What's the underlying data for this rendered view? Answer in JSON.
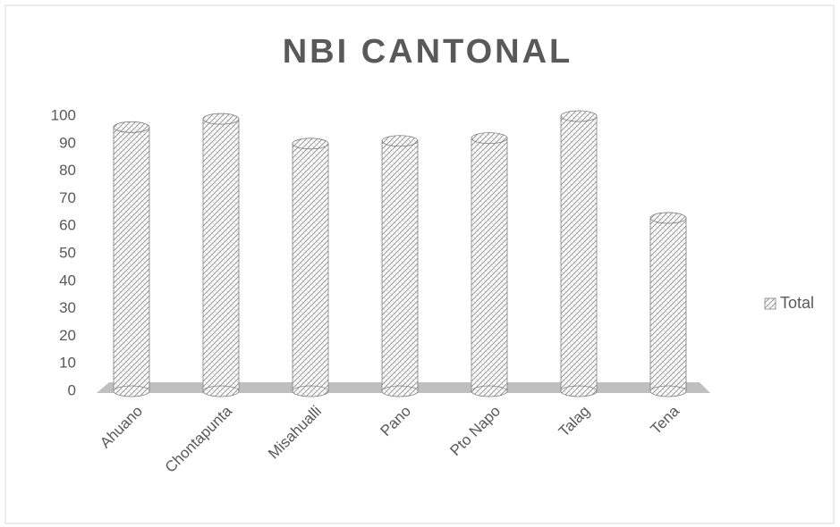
{
  "chart_data": {
    "type": "bar",
    "title": "NBI CANTONAL",
    "categories": [
      "Ahuano",
      "Chontapunta",
      "Misahualli",
      "Pano",
      "Pto Napo",
      "Talag",
      "Tena"
    ],
    "series": [
      {
        "name": "Total",
        "color": "#7f7f7f",
        "values": [
          96,
          99,
          90,
          91,
          92,
          100,
          63
        ]
      }
    ],
    "ylim": [
      0,
      100
    ],
    "yticks": [
      0,
      10,
      20,
      30,
      40,
      50,
      60,
      70,
      80,
      90,
      100
    ],
    "legend": "right"
  }
}
